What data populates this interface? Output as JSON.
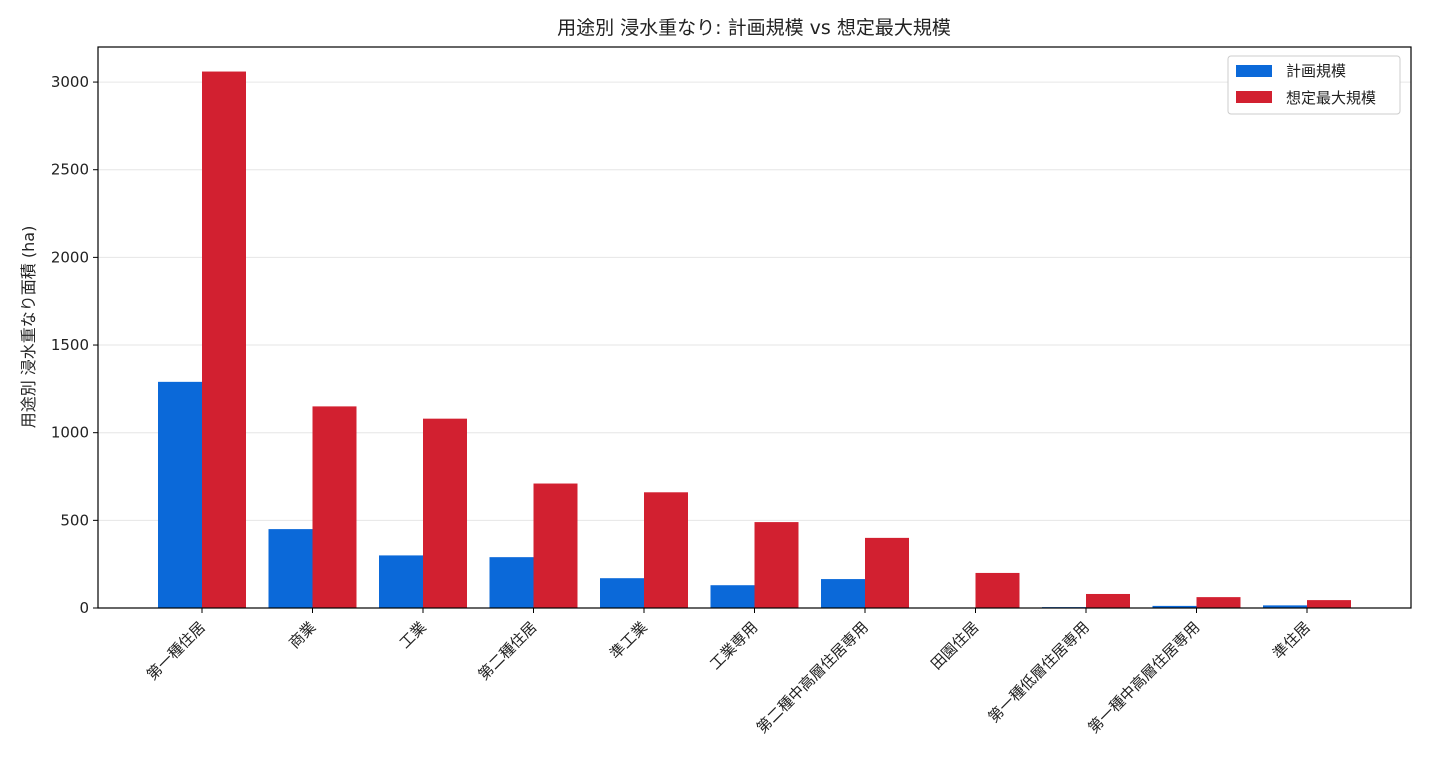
{
  "chart_data": {
    "type": "bar",
    "title": "用途別 浸水重なり: 計画規模 vs 想定最大規模",
    "xlabel": "",
    "ylabel": "用途別 浸水重なり面積 (ha)",
    "ylim": [
      0,
      3200
    ],
    "yticks": [
      0,
      500,
      1000,
      1500,
      2000,
      2500,
      3000
    ],
    "grid": "horizontal",
    "legend_position": "top-right",
    "categories": [
      "第一種住居",
      "商業",
      "工業",
      "第二種住居",
      "準工業",
      "工業専用",
      "第二種中高層住居専用",
      "田園住居",
      "第一種低層住居専用",
      "第一種中高層住居専用",
      "準住居"
    ],
    "series": [
      {
        "name": "計画規模",
        "color": "#0b69d9",
        "values": [
          1290,
          450,
          300,
          290,
          170,
          130,
          165,
          0,
          5,
          12,
          15
        ]
      },
      {
        "name": "想定最大規模",
        "color": "#d22030",
        "values": [
          3060,
          1150,
          1080,
          710,
          660,
          490,
          400,
          200,
          80,
          62,
          45
        ]
      }
    ]
  }
}
